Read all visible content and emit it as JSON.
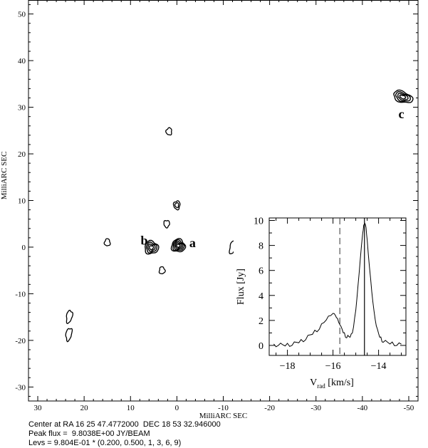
{
  "chart_data": [
    {
      "type": "contour",
      "xlabel": "MilliARC SEC",
      "ylabel": "MilliARC SEC",
      "xlim": [
        32,
        -52
      ],
      "ylim": [
        -33,
        53
      ],
      "x_ticks": [
        30,
        20,
        10,
        0,
        -10,
        -20,
        -30,
        -40,
        -50
      ],
      "x_tick_labels": [
        "30",
        "20",
        "10",
        "0",
        "-10",
        "-20",
        "-30",
        "-40",
        "-50"
      ],
      "y_ticks": [
        50,
        40,
        30,
        20,
        10,
        0,
        -10,
        -20,
        -30
      ],
      "y_tick_labels": [
        "50",
        "40",
        "30",
        "20",
        "10",
        "0",
        "-10",
        "-20",
        "-30"
      ],
      "components": [
        {
          "label": "a",
          "x": -0.3,
          "y": 0.3,
          "levels": 5
        },
        {
          "label": "b",
          "x": 5.5,
          "y": -0.1,
          "levels": 4
        },
        {
          "label": "c",
          "x": -48.7,
          "y": 32.2,
          "levels": 4
        },
        {
          "label": "",
          "x": 2.2,
          "y": 5.0,
          "levels": 1
        },
        {
          "label": "",
          "x": 0.0,
          "y": 9.0,
          "levels": 2
        },
        {
          "label": "",
          "x": 1.7,
          "y": 24.8,
          "levels": 1
        },
        {
          "label": "",
          "x": 15.0,
          "y": 1.0,
          "levels": 1
        },
        {
          "label": "",
          "x": 3.2,
          "y": -5.0,
          "levels": 1
        },
        {
          "label": "",
          "x": -12.0,
          "y": -0.1,
          "levels": 1
        },
        {
          "label": "",
          "x": 23.2,
          "y": -14.9,
          "levels": 1
        },
        {
          "label": "",
          "x": 23.3,
          "y": -18.7,
          "levels": 1
        }
      ]
    },
    {
      "type": "line",
      "xlabel_main": "V",
      "xlabel_sub": "rad",
      "xlabel_unit": " [km/s]",
      "ylabel": "Flux [Jy]",
      "xlim": [
        -18.8,
        -12.8
      ],
      "ylim": [
        -0.8,
        10.2
      ],
      "x_ticks": [
        -18,
        -16,
        -14
      ],
      "x_tick_labels": [
        "−18",
        "−16",
        "−14"
      ],
      "y_ticks": [
        0,
        2,
        4,
        6,
        8,
        10
      ],
      "y_tick_labels": [
        "0",
        "2",
        "4",
        "6",
        "8",
        "10"
      ],
      "vlines": [
        {
          "x": -15.7,
          "style": "dashed"
        },
        {
          "x": -14.62,
          "style": "solid"
        }
      ],
      "series": [
        {
          "x": [
            -18.6,
            -18.4,
            -18.2,
            -18.0,
            -17.8,
            -17.6,
            -17.4,
            -17.2,
            -17.0,
            -16.8,
            -16.6,
            -16.4,
            -16.2,
            -16.0,
            -15.9,
            -15.8,
            -15.7,
            -15.6,
            -15.5,
            -15.4,
            -15.3,
            -15.2,
            -15.1,
            -15.0,
            -14.9,
            -14.8,
            -14.7,
            -14.65,
            -14.6,
            -14.55,
            -14.5,
            -14.4,
            -14.3,
            -14.2,
            -14.1,
            -14.0,
            -13.9,
            -13.8,
            -13.6,
            -13.4,
            -13.2,
            -13.0
          ],
          "y": [
            0.0,
            0.1,
            0.0,
            0.05,
            0.1,
            0.2,
            0.35,
            0.55,
            0.8,
            1.1,
            1.4,
            1.8,
            2.3,
            2.6,
            2.4,
            2.1,
            1.7,
            1.25,
            0.9,
            0.7,
            0.65,
            0.8,
            1.5,
            2.8,
            4.8,
            7.0,
            8.9,
            9.6,
            9.8,
            9.4,
            8.4,
            6.3,
            4.3,
            2.7,
            1.6,
            0.9,
            0.55,
            0.35,
            0.2,
            0.15,
            0.1,
            0.05
          ]
        }
      ]
    }
  ],
  "footer": {
    "line1": "Center at RA 16 25 47.4772000  DEC 18 53 32.946000",
    "line2": "Peak flux =  9.8038E+00 JY/BEAM",
    "line3": "Levs = 9.804E-01 * (0.200, 0.500, 1, 3, 6, 9)"
  }
}
